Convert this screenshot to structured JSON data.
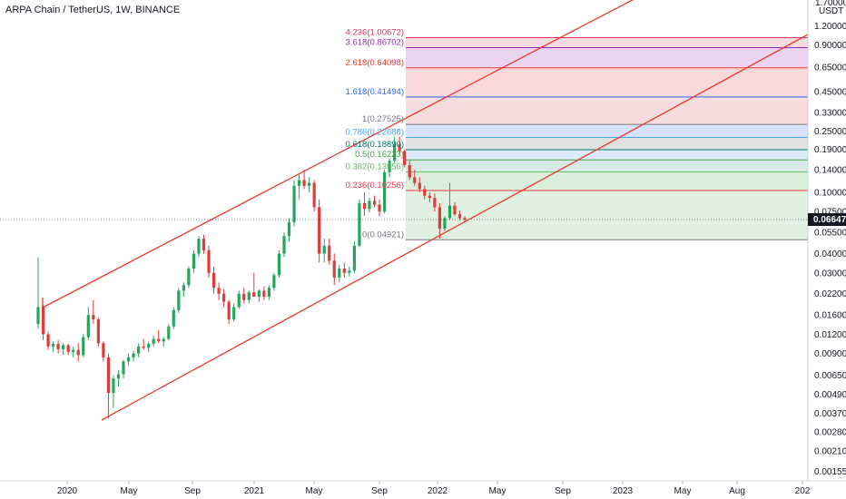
{
  "header": {
    "title": "ARPA Chain / TetherUS, 1W, BINANCE"
  },
  "colors": {
    "up": "#26a65b",
    "down": "#e03a3a",
    "channel": "#e8372e",
    "grid_bg": "#f3f3f5"
  },
  "chart_data": {
    "type": "candlestick",
    "title": "ARPA Chain / TetherUS, 1W, BINANCE",
    "y_scale": "log",
    "y_unit": "USDT",
    "y_ticks": [
      "1.20000",
      "0.90000",
      "0.65000",
      "0.45000",
      "0.33000",
      "0.25000",
      "0.19000",
      "0.14000",
      "0.10000",
      "0.07500",
      "0.05500",
      "0.04000",
      "0.03000",
      "0.02200",
      "0.01600",
      "0.01200",
      "0.00900",
      "0.00650",
      "0.00490",
      "0.00370",
      "0.00280",
      "0.00210",
      "0.00155"
    ],
    "y_top_label": "1.70000",
    "x_ticks": [
      "2020",
      "May",
      "Sep",
      "2021",
      "May",
      "Sep",
      "2022",
      "May",
      "Sep",
      "2023",
      "May",
      "Aug",
      "202"
    ],
    "last_price": "0.06647",
    "fib_levels": [
      {
        "label": "4.236(1.00672)",
        "value": 1.00672,
        "color": "#d33a5a"
      },
      {
        "label": "3.618(0.86702)",
        "value": 0.86702,
        "color": "#9c27b0"
      },
      {
        "label": "2.618(0.64098)",
        "value": 0.64098,
        "color": "#e53935"
      },
      {
        "label": "1.618(0.41494)",
        "value": 0.41494,
        "color": "#2962ff"
      },
      {
        "label": "1(0.27525)",
        "value": 0.27525,
        "color": "#787b86"
      },
      {
        "label": "0.786(0.22688)",
        "value": 0.22688,
        "color": "#42a5f5"
      },
      {
        "label": "0.618(0.18890)",
        "value": 0.1889,
        "color": "#00796b"
      },
      {
        "label": "0.5(0.16223)",
        "value": 0.16223,
        "color": "#43a047"
      },
      {
        "label": "0.382(0.13556)",
        "value": 0.13556,
        "color": "#66bb6a"
      },
      {
        "label": "0.236(0.10256)",
        "value": 0.10256,
        "color": "#f23645"
      },
      {
        "label": "0(0.04921)",
        "value": 0.04921,
        "color": "#787b86"
      }
    ],
    "channel": {
      "upper": [
        [
          "2020-01",
          0.0175
        ],
        [
          "2023-08",
          1.9
        ]
      ],
      "lower": [
        [
          "2020-03",
          0.0033
        ],
        [
          "2023-08",
          1.05
        ]
      ]
    },
    "candles": [
      [
        0.014,
        0.038,
        0.013,
        0.018
      ],
      [
        0.018,
        0.0185,
        0.011,
        0.012
      ],
      [
        0.012,
        0.0125,
        0.0095,
        0.01
      ],
      [
        0.01,
        0.0108,
        0.0092,
        0.0104
      ],
      [
        0.0104,
        0.011,
        0.009,
        0.0096
      ],
      [
        0.0096,
        0.0105,
        0.0088,
        0.0102
      ],
      [
        0.0102,
        0.0104,
        0.0088,
        0.0092
      ],
      [
        0.0092,
        0.01,
        0.0085,
        0.0095
      ],
      [
        0.0095,
        0.0105,
        0.008,
        0.0088
      ],
      [
        0.0088,
        0.012,
        0.0085,
        0.0115
      ],
      [
        0.0115,
        0.018,
        0.011,
        0.016
      ],
      [
        0.016,
        0.02,
        0.014,
        0.015
      ],
      [
        0.015,
        0.0155,
        0.01,
        0.0105
      ],
      [
        0.0105,
        0.0108,
        0.008,
        0.0085
      ],
      [
        0.0085,
        0.009,
        0.0034,
        0.005
      ],
      [
        0.005,
        0.0065,
        0.004,
        0.0062
      ],
      [
        0.0062,
        0.007,
        0.0055,
        0.0066
      ],
      [
        0.0066,
        0.0082,
        0.0062,
        0.008
      ],
      [
        0.008,
        0.009,
        0.0075,
        0.0085
      ],
      [
        0.0085,
        0.0094,
        0.008,
        0.009
      ],
      [
        0.009,
        0.0105,
        0.0085,
        0.01
      ],
      [
        0.01,
        0.0112,
        0.0095,
        0.0098
      ],
      [
        0.0098,
        0.0108,
        0.0092,
        0.0104
      ],
      [
        0.0104,
        0.0118,
        0.01,
        0.0112
      ],
      [
        0.0112,
        0.0128,
        0.0105,
        0.0108
      ],
      [
        0.0108,
        0.0115,
        0.01,
        0.0112
      ],
      [
        0.0112,
        0.014,
        0.011,
        0.0135
      ],
      [
        0.0135,
        0.018,
        0.013,
        0.0172
      ],
      [
        0.0172,
        0.024,
        0.0165,
        0.023
      ],
      [
        0.023,
        0.026,
        0.021,
        0.025
      ],
      [
        0.025,
        0.033,
        0.024,
        0.032
      ],
      [
        0.032,
        0.042,
        0.03,
        0.04
      ],
      [
        0.04,
        0.052,
        0.038,
        0.05
      ],
      [
        0.05,
        0.053,
        0.04,
        0.042
      ],
      [
        0.042,
        0.045,
        0.028,
        0.03
      ],
      [
        0.03,
        0.033,
        0.022,
        0.024
      ],
      [
        0.024,
        0.026,
        0.02,
        0.022
      ],
      [
        0.022,
        0.0235,
        0.018,
        0.0195
      ],
      [
        0.0195,
        0.02,
        0.014,
        0.015
      ],
      [
        0.015,
        0.019,
        0.0145,
        0.018
      ],
      [
        0.018,
        0.023,
        0.0175,
        0.022
      ],
      [
        0.022,
        0.024,
        0.019,
        0.02
      ],
      [
        0.02,
        0.023,
        0.019,
        0.0225
      ],
      [
        0.0225,
        0.03,
        0.021,
        0.021
      ],
      [
        0.021,
        0.0235,
        0.0195,
        0.023
      ],
      [
        0.023,
        0.0245,
        0.02,
        0.021
      ],
      [
        0.021,
        0.025,
        0.02,
        0.024
      ],
      [
        0.024,
        0.03,
        0.023,
        0.029
      ],
      [
        0.029,
        0.042,
        0.028,
        0.04
      ],
      [
        0.04,
        0.055,
        0.038,
        0.052
      ],
      [
        0.052,
        0.068,
        0.048,
        0.064
      ],
      [
        0.064,
        0.12,
        0.06,
        0.11
      ],
      [
        0.11,
        0.13,
        0.09,
        0.12
      ],
      [
        0.12,
        0.14,
        0.105,
        0.11
      ],
      [
        0.11,
        0.125,
        0.1,
        0.115
      ],
      [
        0.115,
        0.12,
        0.075,
        0.08
      ],
      [
        0.08,
        0.09,
        0.035,
        0.04
      ],
      [
        0.04,
        0.05,
        0.035,
        0.045
      ],
      [
        0.045,
        0.05,
        0.034,
        0.036
      ],
      [
        0.036,
        0.04,
        0.025,
        0.028
      ],
      [
        0.028,
        0.034,
        0.026,
        0.032
      ],
      [
        0.032,
        0.035,
        0.028,
        0.03
      ],
      [
        0.03,
        0.033,
        0.0285,
        0.031
      ],
      [
        0.031,
        0.048,
        0.03,
        0.045
      ],
      [
        0.045,
        0.09,
        0.044,
        0.085
      ],
      [
        0.085,
        0.1,
        0.07,
        0.078
      ],
      [
        0.078,
        0.092,
        0.074,
        0.088
      ],
      [
        0.088,
        0.095,
        0.08,
        0.083
      ],
      [
        0.083,
        0.09,
        0.07,
        0.075
      ],
      [
        0.075,
        0.14,
        0.073,
        0.135
      ],
      [
        0.135,
        0.165,
        0.125,
        0.16
      ],
      [
        0.16,
        0.23,
        0.155,
        0.205
      ],
      [
        0.205,
        0.23,
        0.175,
        0.185
      ],
      [
        0.185,
        0.19,
        0.145,
        0.15
      ],
      [
        0.15,
        0.16,
        0.12,
        0.125
      ],
      [
        0.125,
        0.14,
        0.11,
        0.115
      ],
      [
        0.115,
        0.125,
        0.1,
        0.105
      ],
      [
        0.105,
        0.11,
        0.09,
        0.095
      ],
      [
        0.095,
        0.1,
        0.086,
        0.092
      ],
      [
        0.092,
        0.098,
        0.075,
        0.08
      ],
      [
        0.08,
        0.085,
        0.05,
        0.058
      ],
      [
        0.058,
        0.07,
        0.056,
        0.068
      ],
      [
        0.068,
        0.115,
        0.066,
        0.082
      ],
      [
        0.082,
        0.086,
        0.07,
        0.072
      ],
      [
        0.072,
        0.076,
        0.066,
        0.068
      ],
      [
        0.068,
        0.07,
        0.064,
        0.0665
      ]
    ]
  }
}
